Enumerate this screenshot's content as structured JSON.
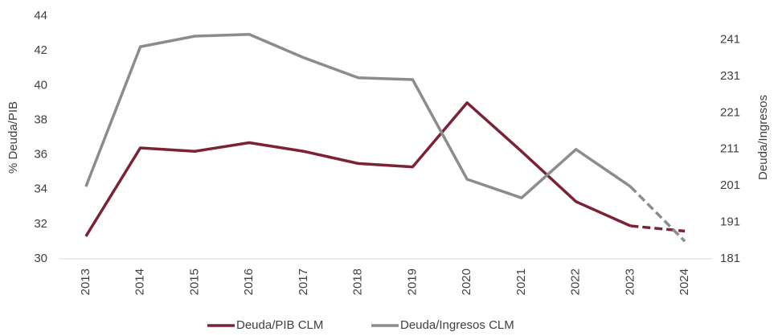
{
  "chart_data": {
    "type": "line",
    "y_label": "% Deuda/PIB",
    "y2_label": "Deuda/Ingresos",
    "categories": [
      "2013",
      "2014",
      "2015",
      "2016",
      "2017",
      "2018",
      "2019",
      "2020",
      "2021",
      "2022",
      "2023",
      "2024"
    ],
    "series": [
      {
        "name": "Deuda/PIB CLM",
        "color": "#7b2335",
        "axis": "y",
        "values": [
          31.3,
          36.4,
          36.2,
          36.7,
          36.2,
          35.5,
          35.3,
          39.0,
          36.2,
          33.3,
          31.9,
          31.6
        ]
      },
      {
        "name": "Deuda/Ingresos CLM",
        "color": "#8c8c8c",
        "axis": "y2",
        "values": [
          200.8,
          239.1,
          242.0,
          242.5,
          236.1,
          230.6,
          230.1,
          202.8,
          197.7,
          211.0,
          200.8,
          185.8
        ]
      }
    ],
    "last_segment_dashed": true,
    "ylim": [
      30,
      44
    ],
    "yticks": [
      30,
      32,
      34,
      36,
      38,
      40,
      42,
      44
    ],
    "y2lim": [
      181,
      247.5
    ],
    "y2ticks": [
      181,
      191,
      201,
      211,
      221,
      231,
      241
    ],
    "grid": false,
    "legend": "bottom"
  }
}
